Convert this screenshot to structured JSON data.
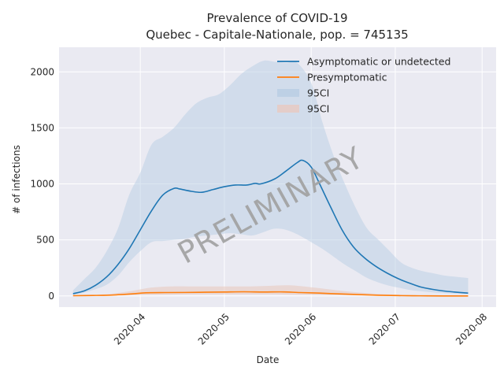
{
  "chart_data": {
    "type": "line",
    "title": "Prevalence of COVID-19",
    "subtitle": "Quebec - Capitale-Nationale, pop. = 745135",
    "xlabel": "Date",
    "ylabel": "# of infections",
    "watermark": "PRELIMINARY",
    "grid": true,
    "legend_position": "top-right",
    "xlim": [
      "2020-03-03",
      "2020-08-06"
    ],
    "ylim": [
      -100,
      2220
    ],
    "x_ticks": [
      "2020-04",
      "2020-05",
      "2020-06",
      "2020-07",
      "2020-08"
    ],
    "x_tick_dates": [
      "2020-04-01",
      "2020-05-01",
      "2020-06-01",
      "2020-07-01",
      "2020-08-01"
    ],
    "y_ticks": [
      0,
      500,
      1000,
      1500,
      2000
    ],
    "colors": {
      "background": "#eaeaf2",
      "grid": "#ffffff",
      "asymptomatic": "#1f77b4",
      "presymptomatic": "#ff7f0e",
      "ci_asymptomatic": "#b8cde4",
      "ci_presymptomatic": "#e8c9c0"
    },
    "series": [
      {
        "name": "Asymptomatic or undetected",
        "color": "#1f77b4",
        "x": [
          "2020-03-08",
          "2020-03-12",
          "2020-03-16",
          "2020-03-20",
          "2020-03-24",
          "2020-03-28",
          "2020-04-01",
          "2020-04-05",
          "2020-04-09",
          "2020-04-13",
          "2020-04-15",
          "2020-04-19",
          "2020-04-23",
          "2020-04-27",
          "2020-05-01",
          "2020-05-05",
          "2020-05-09",
          "2020-05-12",
          "2020-05-14",
          "2020-05-19",
          "2020-05-23",
          "2020-05-27",
          "2020-05-29",
          "2020-06-01",
          "2020-06-04",
          "2020-06-08",
          "2020-06-12",
          "2020-06-16",
          "2020-06-20",
          "2020-06-24",
          "2020-06-28",
          "2020-07-02",
          "2020-07-06",
          "2020-07-10",
          "2020-07-14",
          "2020-07-18",
          "2020-07-22",
          "2020-07-27"
        ],
        "values": [
          20,
          45,
          95,
          170,
          280,
          420,
          590,
          760,
          900,
          960,
          955,
          935,
          925,
          950,
          975,
          990,
          990,
          1005,
          1000,
          1045,
          1115,
          1190,
          1210,
          1150,
          1000,
          790,
          590,
          440,
          340,
          265,
          205,
          155,
          115,
          80,
          60,
          45,
          35,
          25
        ]
      },
      {
        "name": "Presymptomatic",
        "color": "#ff7f0e",
        "x": [
          "2020-03-08",
          "2020-03-15",
          "2020-03-22",
          "2020-03-29",
          "2020-04-03",
          "2020-04-10",
          "2020-04-17",
          "2020-04-24",
          "2020-05-01",
          "2020-05-08",
          "2020-05-15",
          "2020-05-22",
          "2020-05-28",
          "2020-06-04",
          "2020-06-11",
          "2020-06-18",
          "2020-06-25",
          "2020-07-02",
          "2020-07-10",
          "2020-07-18",
          "2020-07-27"
        ],
        "values": [
          2,
          4,
          8,
          18,
          28,
          30,
          31,
          33,
          35,
          37,
          35,
          36,
          30,
          25,
          18,
          12,
          6,
          3,
          1,
          0,
          0
        ]
      }
    ],
    "bands": [
      {
        "name": "95CI",
        "color": "#b8cde4",
        "x": [
          "2020-03-08",
          "2020-03-12",
          "2020-03-16",
          "2020-03-20",
          "2020-03-24",
          "2020-03-28",
          "2020-04-01",
          "2020-04-05",
          "2020-04-09",
          "2020-04-13",
          "2020-04-17",
          "2020-04-21",
          "2020-04-25",
          "2020-04-29",
          "2020-05-03",
          "2020-05-07",
          "2020-05-11",
          "2020-05-15",
          "2020-05-19",
          "2020-05-23",
          "2020-05-27",
          "2020-06-01",
          "2020-06-05",
          "2020-06-09",
          "2020-06-13",
          "2020-06-17",
          "2020-06-21",
          "2020-06-25",
          "2020-06-29",
          "2020-07-03",
          "2020-07-07",
          "2020-07-11",
          "2020-07-15",
          "2020-07-19",
          "2020-07-23",
          "2020-07-27"
        ],
        "upper": [
          50,
          150,
          250,
          400,
          600,
          900,
          1100,
          1350,
          1420,
          1500,
          1620,
          1720,
          1770,
          1800,
          1880,
          1980,
          2050,
          2100,
          2090,
          2080,
          2080,
          1900,
          1550,
          1250,
          1000,
          780,
          600,
          500,
          400,
          300,
          250,
          220,
          200,
          180,
          170,
          160
        ],
        "lower": [
          10,
          30,
          60,
          100,
          180,
          300,
          400,
          480,
          490,
          500,
          510,
          530,
          540,
          550,
          560,
          550,
          540,
          570,
          600,
          590,
          550,
          480,
          420,
          350,
          280,
          220,
          160,
          120,
          90,
          70,
          50,
          40,
          30,
          25,
          20,
          15
        ]
      },
      {
        "name": "95CI",
        "color": "#e8c9c0",
        "x": [
          "2020-03-08",
          "2020-03-15",
          "2020-03-22",
          "2020-03-29",
          "2020-04-05",
          "2020-04-12",
          "2020-04-19",
          "2020-04-26",
          "2020-05-03",
          "2020-05-10",
          "2020-05-17",
          "2020-05-24",
          "2020-05-31",
          "2020-06-07",
          "2020-06-14",
          "2020-06-21",
          "2020-06-28",
          "2020-07-05",
          "2020-07-12",
          "2020-07-19",
          "2020-07-27"
        ],
        "upper": [
          3,
          8,
          20,
          45,
          75,
          85,
          85,
          85,
          85,
          85,
          90,
          95,
          80,
          60,
          40,
          25,
          15,
          8,
          4,
          2,
          1
        ],
        "lower": [
          1,
          2,
          3,
          6,
          10,
          12,
          14,
          14,
          14,
          14,
          14,
          12,
          10,
          7,
          5,
          3,
          2,
          1,
          0,
          0,
          0
        ]
      }
    ]
  }
}
